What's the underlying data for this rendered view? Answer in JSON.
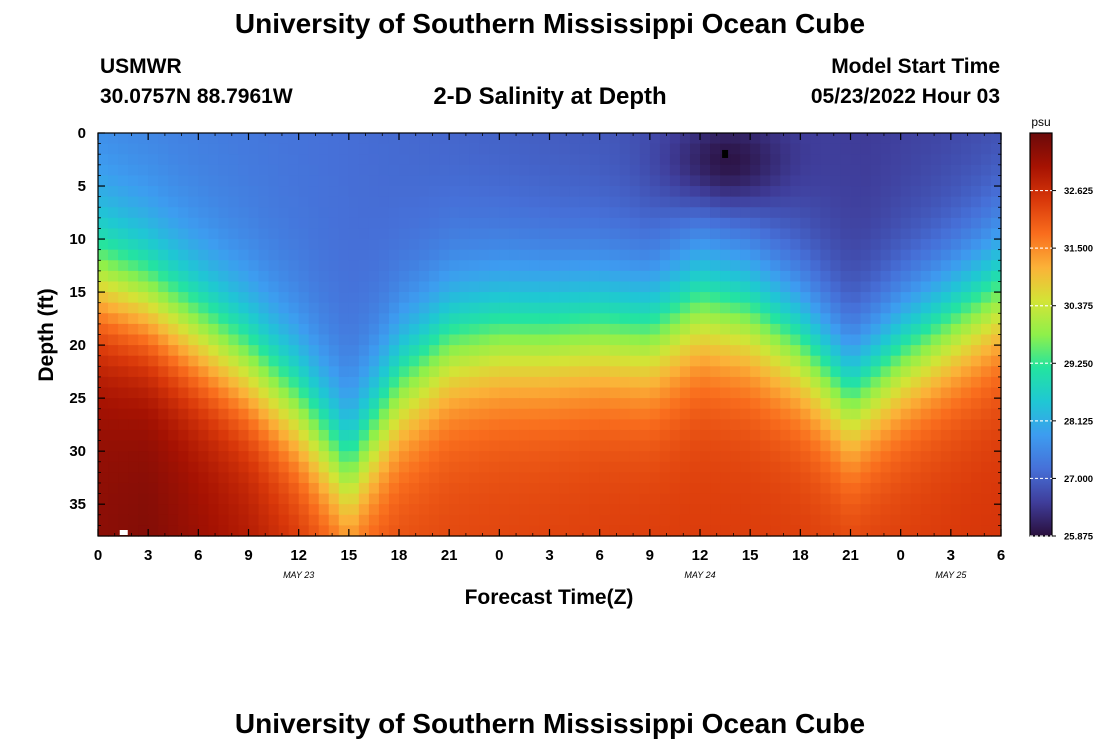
{
  "header": {
    "title": "University of Southern Mississippi Ocean Cube",
    "station_id": "USMWR",
    "station_coords": "30.0757N  88.7961W",
    "model_label": "Model Start Time",
    "model_time": "05/23/2022 Hour 03"
  },
  "footer": {
    "title": "University of Southern Mississippi Ocean Cube"
  },
  "chart_data": {
    "type": "heatmap",
    "title": "2-D Salinity at Depth",
    "xlabel": "Forecast Time(Z)",
    "ylabel": "Depth (ft)",
    "x_range_hours": [
      0,
      54
    ],
    "y_range_ft": [
      0,
      38
    ],
    "y_inverted": true,
    "x_tick_labels": [
      "0",
      "3",
      "6",
      "9",
      "12",
      "15",
      "18",
      "21",
      "0",
      "3",
      "6",
      "9",
      "12",
      "15",
      "18",
      "21",
      "0",
      "3",
      "6"
    ],
    "y_tick_labels": [
      "0",
      "5",
      "10",
      "15",
      "20",
      "25",
      "30",
      "35"
    ],
    "y_tick_values": [
      0,
      5,
      10,
      15,
      20,
      25,
      30,
      35
    ],
    "date_labels": [
      {
        "label": "MAY 23",
        "hour": 12
      },
      {
        "label": "MAY 24",
        "hour": 36
      },
      {
        "label": "MAY 25",
        "hour": 51
      }
    ],
    "colorbar": {
      "unit": "psu",
      "min": 25.875,
      "max": 33.75,
      "tick_labels": [
        "25.875",
        "27.000",
        "28.125",
        "29.250",
        "30.375",
        "31.500",
        "32.625"
      ],
      "tick_values": [
        25.875,
        27.0,
        28.125,
        29.25,
        30.375,
        31.5,
        32.625
      ],
      "colors": [
        "#2a0f3c",
        "#3f3d9a",
        "#4670d8",
        "#3d9cf0",
        "#1fc7d4",
        "#23e4a0",
        "#8ff04a",
        "#d3e436",
        "#fbb238",
        "#f96d1d",
        "#d9380a",
        "#a61202",
        "#6b0a0a"
      ]
    },
    "surface_fresh_hours": [
      0,
      18,
      46,
      54
    ],
    "surface_fresh_values": [
      27.5,
      27.1,
      26.5,
      26.7
    ],
    "halocline_hours": [
      0,
      3,
      6,
      9,
      12,
      15,
      18,
      21,
      24,
      27,
      30,
      33,
      36,
      39,
      42,
      45,
      48,
      51,
      54
    ],
    "halocline_depth_ft": [
      14,
      16,
      19,
      22,
      26,
      32,
      24,
      20,
      19,
      19,
      18.5,
      19,
      16,
      17,
      20,
      25,
      21,
      18,
      15
    ],
    "deep_salty_hours": [
      0,
      3,
      9,
      15,
      24,
      33,
      48,
      54
    ],
    "deep_salty_values": [
      33.4,
      33.5,
      33.0,
      32.2,
      32.3,
      32.4,
      32.4,
      32.5
    ],
    "fresh_pocket": {
      "hour": 37.5,
      "depth_ft": 3,
      "value": 25.9
    }
  }
}
